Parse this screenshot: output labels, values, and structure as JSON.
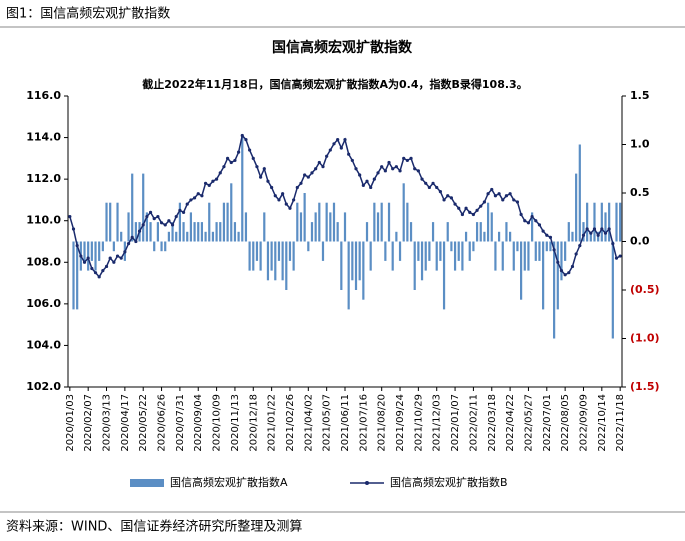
{
  "header": "图1：国信高频宏观扩散指数",
  "source": "资料来源：WIND、国信证券经济研究所整理及测算",
  "chart_data": {
    "type": "combo",
    "title": "国信高频宏观扩散指数",
    "annotation": "截止2022年11月18日，国信高频宏观扩散指数A为0.4，指数B录得108.3。",
    "categories": [
      "2020/01/03",
      null,
      null,
      null,
      null,
      "2020/02/07",
      null,
      null,
      null,
      null,
      "2020/03/13",
      null,
      null,
      null,
      null,
      "2020/04/17",
      null,
      null,
      null,
      null,
      "2020/05/22",
      null,
      null,
      null,
      null,
      "2020/06/26",
      null,
      null,
      null,
      null,
      "2020/07/31",
      null,
      null,
      null,
      null,
      "2020/09/04",
      null,
      null,
      null,
      null,
      "2020/10/09",
      null,
      null,
      null,
      null,
      "2020/11/13",
      null,
      null,
      null,
      null,
      "2020/12/18",
      null,
      null,
      null,
      null,
      "2021/01/22",
      null,
      null,
      null,
      null,
      "2021/02/26",
      null,
      null,
      null,
      null,
      "2021/04/02",
      null,
      null,
      null,
      null,
      "2021/05/07",
      null,
      null,
      null,
      null,
      "2021/06/11",
      null,
      null,
      null,
      null,
      "2021/07/16",
      null,
      null,
      null,
      null,
      "2021/08/20",
      null,
      null,
      null,
      null,
      "2021/09/24",
      null,
      null,
      null,
      null,
      "2021/10/29",
      null,
      null,
      null,
      null,
      "2021/12/03",
      null,
      null,
      null,
      null,
      "2022/01/07",
      null,
      null,
      null,
      null,
      "2022/02/11",
      null,
      null,
      null,
      null,
      "2022/03/18",
      null,
      null,
      null,
      null,
      "2022/04/22",
      null,
      null,
      null,
      null,
      "2022/05/27",
      null,
      null,
      null,
      null,
      "2022/07/01",
      null,
      null,
      null,
      null,
      "2022/08/05",
      null,
      null,
      null,
      null,
      "2022/09/09",
      null,
      null,
      null,
      null,
      "2022/10/14",
      null,
      null,
      null,
      null,
      "2022/11/18"
    ],
    "series": [
      {
        "name": "国信高频宏观扩散指数A",
        "type": "bar",
        "axis": "y2",
        "color": "#5b8ec4",
        "values": [
          0.0,
          -0.7,
          -0.7,
          -0.3,
          -0.2,
          -0.3,
          -0.2,
          -0.3,
          -0.2,
          -0.1,
          0.4,
          0.4,
          -0.1,
          0.4,
          0.1,
          -0.2,
          0.3,
          0.7,
          0.2,
          0.2,
          0.7,
          0.3,
          0.2,
          -0.1,
          0.2,
          -0.1,
          -0.1,
          0.1,
          0.2,
          0.1,
          0.4,
          0.2,
          0.1,
          0.3,
          0.2,
          0.2,
          0.2,
          0.1,
          0.4,
          0.1,
          0.2,
          0.2,
          0.4,
          0.4,
          0.6,
          0.2,
          0.1,
          1.1,
          0.3,
          -0.3,
          -0.3,
          -0.2,
          -0.3,
          0.3,
          -0.4,
          -0.3,
          -0.4,
          -0.2,
          -0.4,
          -0.5,
          -0.2,
          -0.3,
          0.4,
          0.3,
          0.5,
          -0.1,
          0.2,
          0.3,
          0.4,
          -0.2,
          0.4,
          0.3,
          0.4,
          0.2,
          -0.5,
          0.3,
          -0.7,
          -0.4,
          -0.5,
          -0.4,
          -0.6,
          0.2,
          -0.3,
          0.4,
          0.3,
          0.4,
          -0.2,
          0.4,
          -0.3,
          0.1,
          -0.2,
          0.6,
          0.4,
          0.2,
          -0.5,
          -0.2,
          -0.4,
          -0.3,
          -0.2,
          0.2,
          -0.3,
          -0.2,
          -0.7,
          0.2,
          -0.1,
          -0.3,
          -0.2,
          -0.3,
          0.1,
          -0.2,
          -0.1,
          0.2,
          0.2,
          0.1,
          0.4,
          0.3,
          -0.3,
          0.1,
          -0.3,
          0.2,
          0.1,
          -0.3,
          -0.1,
          -0.6,
          -0.3,
          -0.3,
          0.3,
          -0.2,
          -0.2,
          -0.7,
          -0.1,
          -0.1,
          -1.0,
          -0.7,
          -0.4,
          -0.2,
          0.2,
          0.1,
          0.7,
          1.0,
          0.2,
          0.4,
          0.1,
          0.4,
          0.1,
          0.4,
          0.3,
          0.4,
          -1.0,
          0.4,
          0.4
        ]
      },
      {
        "name": "国信高频宏观扩散指数B",
        "type": "line",
        "color": "#1a2a6c",
        "values": [
          110.2,
          109.6,
          108.8,
          108.3,
          108.0,
          108.2,
          107.7,
          107.5,
          107.3,
          107.6,
          107.8,
          108.2,
          108.0,
          108.3,
          108.2,
          108.5,
          108.9,
          109.2,
          109.0,
          109.5,
          109.8,
          110.2,
          110.4,
          110.1,
          110.2,
          109.9,
          109.8,
          110.0,
          109.8,
          110.2,
          110.5,
          110.4,
          110.8,
          111.0,
          111.1,
          111.3,
          111.2,
          111.8,
          111.7,
          111.9,
          112.0,
          112.3,
          112.6,
          113.0,
          112.8,
          112.9,
          113.3,
          114.1,
          113.9,
          113.4,
          113.0,
          112.6,
          112.1,
          112.5,
          111.9,
          111.6,
          111.2,
          111.0,
          111.3,
          110.8,
          110.6,
          111.0,
          111.6,
          111.8,
          112.2,
          112.1,
          112.3,
          112.5,
          112.8,
          112.6,
          113.1,
          113.4,
          113.7,
          113.9,
          113.5,
          113.9,
          113.2,
          112.9,
          112.5,
          112.2,
          111.7,
          111.9,
          111.6,
          112.0,
          112.3,
          112.6,
          112.4,
          112.8,
          112.5,
          112.6,
          112.4,
          113.0,
          112.9,
          113.0,
          112.5,
          112.4,
          112.0,
          111.8,
          111.6,
          111.8,
          111.6,
          111.4,
          111.0,
          111.2,
          111.1,
          110.8,
          110.6,
          110.3,
          110.6,
          110.4,
          110.3,
          110.5,
          110.7,
          110.9,
          111.3,
          111.5,
          111.2,
          111.3,
          111.0,
          111.2,
          111.3,
          111.0,
          110.9,
          110.3,
          110.0,
          109.9,
          110.2,
          110.0,
          109.8,
          109.5,
          109.3,
          109.2,
          108.6,
          108.0,
          107.6,
          107.4,
          107.5,
          107.8,
          108.4,
          108.8,
          109.3,
          109.6,
          109.4,
          109.6,
          109.3,
          109.6,
          109.4,
          109.6,
          108.9,
          108.2,
          108.3
        ]
      }
    ],
    "ylim": [
      102,
      116
    ],
    "yticks": [
      {
        "value": 102,
        "label": "102.0"
      },
      {
        "value": 104,
        "label": "104.0"
      },
      {
        "value": 106,
        "label": "106.0"
      },
      {
        "value": 108,
        "label": "108.0"
      },
      {
        "value": 110,
        "label": "110.0"
      },
      {
        "value": 112,
        "label": "112.0"
      },
      {
        "value": 114,
        "label": "114.0"
      },
      {
        "value": 116,
        "label": "116.0"
      }
    ],
    "y2lim": [
      -1.5,
      1.5
    ],
    "y2ticks": [
      {
        "value": -1.5,
        "label": "(1.5)"
      },
      {
        "value": -1.0,
        "label": "(1.0)"
      },
      {
        "value": -0.5,
        "label": "(0.5)"
      },
      {
        "value": 0,
        "label": "0.0"
      },
      0.5,
      {
        "value": 1.0,
        "label": "1.0"
      },
      1.5
    ],
    "grid": false,
    "legend": "bottom"
  }
}
